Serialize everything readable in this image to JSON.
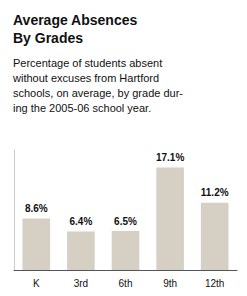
{
  "chart_data": {
    "type": "bar",
    "title": "Average Absences\nBy Grades",
    "subtitle": "Percentage of students absent\nwithout excuses from Hartford\nschools, on average, by grade dur-\ning the 2005-06 school year.",
    "categories": [
      "K",
      "3rd",
      "6th",
      "9th",
      "12th"
    ],
    "values": [
      8.6,
      6.4,
      6.5,
      17.1,
      11.2
    ],
    "value_labels": [
      "8.6%",
      "6.4%",
      "6.5%",
      "17.1%",
      "11.2%"
    ],
    "data_labels": true,
    "color": "#d6cfc4",
    "ylim": [
      0,
      20
    ],
    "grid": false,
    "tick_labels": "x"
  }
}
